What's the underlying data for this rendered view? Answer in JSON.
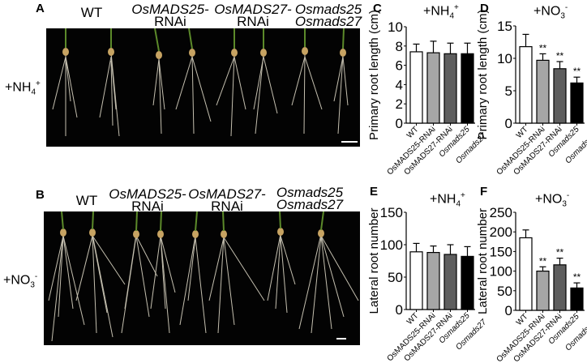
{
  "panels": {
    "A": {
      "letter": "A",
      "row_label": "+NH",
      "row_sub": "4",
      "row_sup": "+"
    },
    "B": {
      "letter": "B",
      "row_label": "+NO",
      "row_sub": "3",
      "row_sup": "-"
    },
    "C": {
      "letter": "C"
    },
    "D": {
      "letter": "D"
    },
    "E": {
      "letter": "E"
    },
    "F": {
      "letter": "F"
    }
  },
  "genotype_labels": [
    {
      "line1": "WT",
      "line2": ""
    },
    {
      "line1": "OsMADS25-",
      "line2": "RNAi"
    },
    {
      "line1": "OsMADS27-",
      "line2": "RNAi"
    },
    {
      "line1": "Osmads25",
      "line2": "Osmads27"
    }
  ],
  "colors": {
    "bar_fills": [
      "#ffffff",
      "#a6a6a6",
      "#5e5e5e",
      "#000000"
    ],
    "axis": "#000000",
    "photo_bg": "#030303"
  },
  "chart_data": [
    {
      "panel": "C",
      "type": "bar",
      "title": "+NH4+",
      "title_main": "+NH",
      "title_sub": "4",
      "title_sup": "+",
      "categories": [
        "WT",
        "OsMADS25-RNAi",
        "OsMADS27-RNAi",
        "Osmads25 Osmads27"
      ],
      "tick_labels": [
        "WT",
        "OsMADS25-RNAi",
        "OsMADS27-RNAi",
        "Osmads25",
        "Osmads27"
      ],
      "values": [
        7.4,
        7.3,
        7.2,
        7.2
      ],
      "errors": [
        0.8,
        1.2,
        1.1,
        1.1
      ],
      "significance": [
        "",
        "",
        "",
        ""
      ],
      "xlabel": "",
      "ylabel": "Primary root length (cm)",
      "ylim": [
        0,
        10
      ],
      "yticks": [
        0,
        2,
        4,
        6,
        8,
        10
      ],
      "grid": false,
      "legend": "none"
    },
    {
      "panel": "D",
      "type": "bar",
      "title": "+NO3-",
      "title_main": "+NO",
      "title_sub": "3",
      "title_sup": "-",
      "categories": [
        "WT",
        "OsMADS25-RNAi",
        "OsMADS27-RNAi",
        "Osmads25 Osmads27"
      ],
      "tick_labels": [
        "WT",
        "OsMADS25-RNAi",
        "OsMADS27-RNAi",
        "Osmads25",
        "Osmads27"
      ],
      "values": [
        11.8,
        9.7,
        8.4,
        6.2
      ],
      "errors": [
        1.9,
        1.0,
        1.1,
        0.9
      ],
      "significance": [
        "",
        "**",
        "**",
        "**"
      ],
      "xlabel": "",
      "ylabel": "Primary root length (cm)",
      "ylim": [
        0,
        15
      ],
      "yticks": [
        0,
        5,
        10,
        15
      ],
      "grid": false,
      "legend": "none"
    },
    {
      "panel": "E",
      "type": "bar",
      "title": "+NH4+",
      "title_main": "+NH",
      "title_sub": "4",
      "title_sup": "+",
      "categories": [
        "WT",
        "OsMADS25-RNAi",
        "OsMADS27-RNAi",
        "Osmads25 Osmads27"
      ],
      "tick_labels": [
        "WT",
        "OsMADS25-RNAi",
        "OsMADS27-RNAi",
        "Osmads25",
        "Osmads27"
      ],
      "values": [
        89,
        88,
        85,
        82
      ],
      "errors": [
        13,
        10,
        15,
        15
      ],
      "significance": [
        "",
        "",
        "",
        ""
      ],
      "xlabel": "",
      "ylabel": "Lateral root number",
      "ylim": [
        0,
        150
      ],
      "yticks": [
        0,
        50,
        100,
        150
      ],
      "grid": false,
      "legend": "none"
    },
    {
      "panel": "F",
      "type": "bar",
      "title": "+NO3-",
      "title_main": "+NO",
      "title_sub": "3",
      "title_sup": "-",
      "categories": [
        "WT",
        "OsMADS25-RNAi",
        "OsMADS27-RNAi",
        "Osmads25 Osmads27"
      ],
      "tick_labels": [
        "WT",
        "OsMADS25-RNAi",
        "OsMADS27-RNAi",
        "Osmads25",
        "Osmads27"
      ],
      "values": [
        185,
        100,
        116,
        57
      ],
      "errors": [
        20,
        11,
        17,
        13
      ],
      "significance": [
        "",
        "**",
        "**",
        "**"
      ],
      "xlabel": "",
      "ylabel": "Lateral root number",
      "ylim": [
        0,
        250
      ],
      "yticks": [
        0,
        50,
        100,
        150,
        200,
        250
      ],
      "grid": false,
      "legend": "none"
    }
  ]
}
